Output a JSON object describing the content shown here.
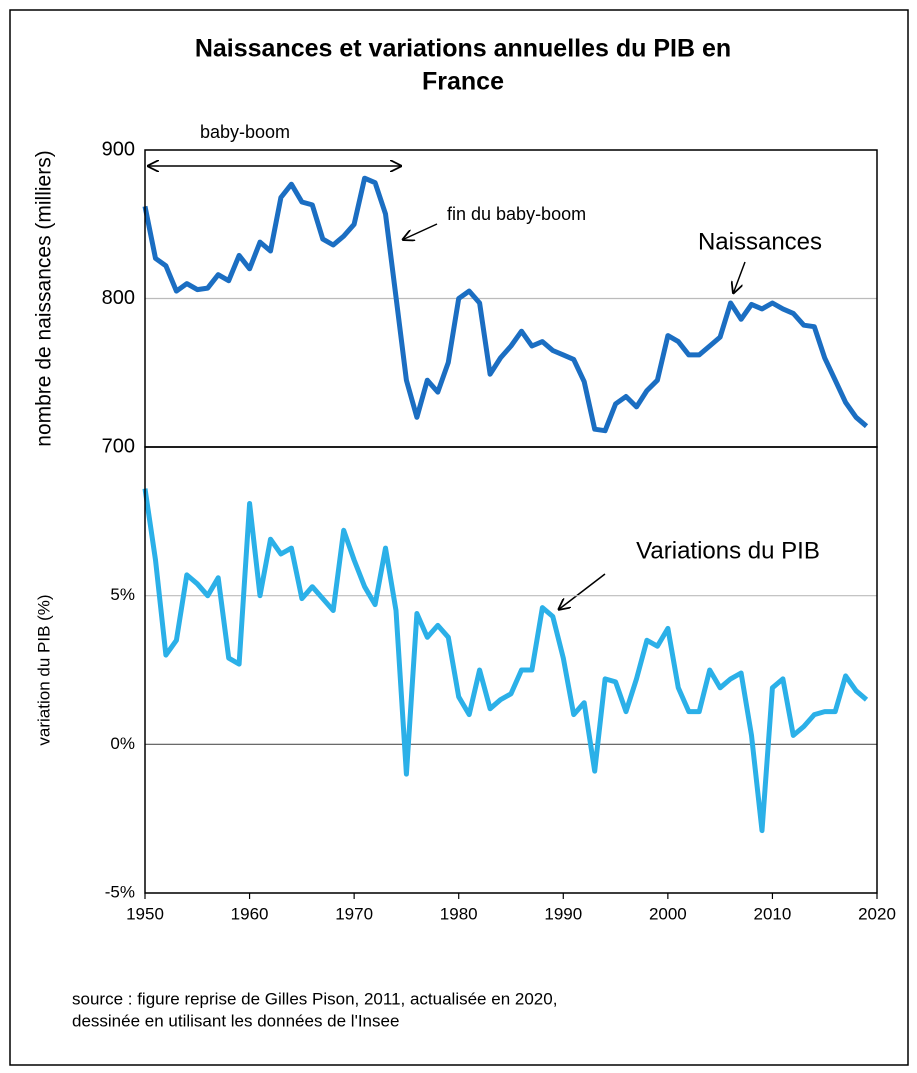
{
  "title": [
    "Naissances et variations annuelles du PIB en",
    "France"
  ],
  "source": [
    "source : figure reprise de Gilles Pison, 2011, actualisée en 2020,",
    "dessinée en utilisant les données de l'Insee"
  ],
  "chart_data": [
    {
      "type": "line",
      "ylabel": "nombre de naissances (milliers)",
      "color": "#1b6ec2",
      "grid": true,
      "annotations": [
        "baby-boom",
        "fin du baby-boom",
        "Naissances"
      ],
      "xlim": [
        1950,
        2020
      ],
      "ylim": [
        700,
        900
      ],
      "yticks": [
        700,
        800,
        900
      ],
      "x": [
        1950,
        1951,
        1952,
        1953,
        1954,
        1955,
        1956,
        1957,
        1958,
        1959,
        1960,
        1961,
        1962,
        1963,
        1964,
        1965,
        1966,
        1967,
        1968,
        1969,
        1970,
        1971,
        1972,
        1973,
        1974,
        1975,
        1976,
        1977,
        1978,
        1979,
        1980,
        1981,
        1982,
        1983,
        1984,
        1985,
        1986,
        1987,
        1988,
        1989,
        1990,
        1991,
        1992,
        1993,
        1994,
        1995,
        1996,
        1997,
        1998,
        1999,
        2000,
        2001,
        2002,
        2003,
        2004,
        2005,
        2006,
        2007,
        2008,
        2009,
        2010,
        2011,
        2012,
        2013,
        2014,
        2015,
        2016,
        2017,
        2018,
        2019
      ],
      "values": [
        862,
        827,
        822,
        805,
        810,
        806,
        807,
        816,
        812,
        829,
        820,
        838,
        832,
        868,
        877,
        865,
        863,
        840,
        836,
        842,
        850,
        881,
        878,
        857,
        801,
        745,
        720,
        745,
        737,
        757,
        800,
        805,
        797,
        749,
        760,
        768,
        778,
        768,
        771,
        765,
        762,
        759,
        744,
        712,
        711,
        729,
        734,
        727,
        738,
        745,
        775,
        771,
        762,
        762,
        768,
        774,
        797,
        786,
        796,
        793,
        797,
        793,
        790,
        782,
        781,
        760,
        745,
        730,
        720,
        714
      ]
    },
    {
      "type": "line",
      "ylabel": "variation du PIB (%)",
      "color": "#2bb0e8",
      "grid": true,
      "annotations": [
        "Variations du PIB"
      ],
      "xlim": [
        1950,
        2020
      ],
      "xticks": [
        1950,
        1960,
        1970,
        1980,
        1990,
        2000,
        2010,
        2020
      ],
      "ylim": [
        -5,
        10
      ],
      "yticks": [
        {
          "value": -5,
          "label": "-5%"
        },
        {
          "value": 0,
          "label": "0%"
        },
        {
          "value": 5,
          "label": "5%"
        }
      ],
      "x": [
        1950,
        1951,
        1952,
        1953,
        1954,
        1955,
        1956,
        1957,
        1958,
        1959,
        1960,
        1961,
        1962,
        1963,
        1964,
        1965,
        1966,
        1967,
        1968,
        1969,
        1970,
        1971,
        1972,
        1973,
        1974,
        1975,
        1976,
        1977,
        1978,
        1979,
        1980,
        1981,
        1982,
        1983,
        1984,
        1985,
        1986,
        1987,
        1988,
        1989,
        1990,
        1991,
        1992,
        1993,
        1994,
        1995,
        1996,
        1997,
        1998,
        1999,
        2000,
        2001,
        2002,
        2003,
        2004,
        2005,
        2006,
        2007,
        2008,
        2009,
        2010,
        2011,
        2012,
        2013,
        2014,
        2015,
        2016,
        2017,
        2018,
        2019
      ],
      "values": [
        8.6,
        6.2,
        3.0,
        3.5,
        5.7,
        5.4,
        5.0,
        5.6,
        2.9,
        2.7,
        8.1,
        5.0,
        6.9,
        6.4,
        6.6,
        4.9,
        5.3,
        4.9,
        4.5,
        7.2,
        6.2,
        5.3,
        4.7,
        6.6,
        4.5,
        -1.0,
        4.4,
        3.6,
        4.0,
        3.6,
        1.6,
        1.0,
        2.5,
        1.2,
        1.5,
        1.7,
        2.5,
        2.5,
        4.6,
        4.3,
        2.9,
        1.0,
        1.4,
        -0.9,
        2.2,
        2.1,
        1.1,
        2.2,
        3.5,
        3.3,
        3.9,
        1.9,
        1.1,
        1.1,
        2.5,
        1.9,
        2.2,
        2.4,
        0.3,
        -2.9,
        1.9,
        2.2,
        0.3,
        0.6,
        1.0,
        1.1,
        1.1,
        2.3,
        1.8,
        1.5
      ]
    }
  ]
}
